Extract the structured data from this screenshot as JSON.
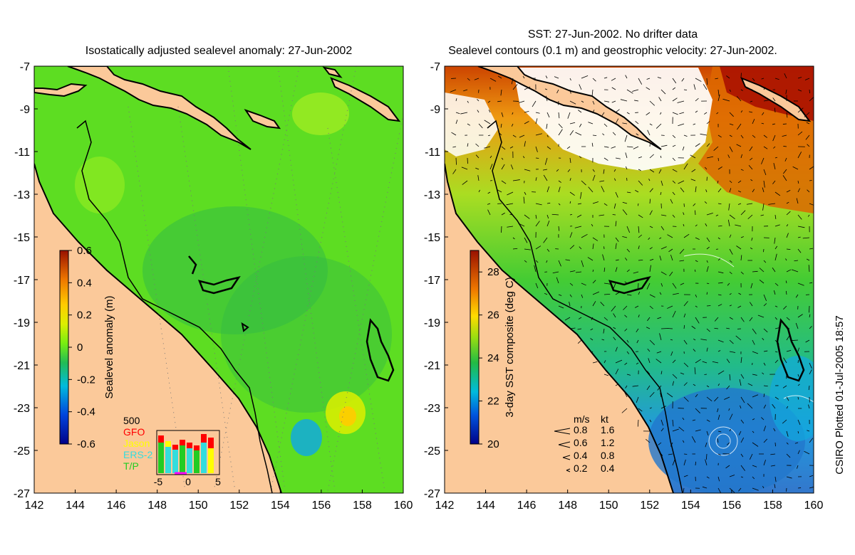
{
  "left_panel": {
    "title": "Isostatically adjusted sealevel anomaly: 27-Jun-2002",
    "colorbar": {
      "label": "Sealevel anomaly (m)",
      "ticks": [
        "0.6",
        "0.4",
        "0.2",
        "0",
        "-0.2",
        "-0.4",
        "-0.6"
      ],
      "range": [
        -0.6,
        0.6
      ]
    },
    "inset": {
      "count_label": "500",
      "missions": [
        {
          "name": "GFO",
          "color": "#ff0000"
        },
        {
          "name": "Jason",
          "color": "#ffff00"
        },
        {
          "name": "ERS-2",
          "color": "#33dddd"
        },
        {
          "name": "T/P",
          "color": "#22cc22"
        }
      ],
      "x_ticks": [
        "-5",
        "0",
        "5"
      ]
    }
  },
  "right_panel": {
    "title_line1": "SST: 27-Jun-2002. No drifter data",
    "title_line2": "Sealevel contours (0.1 m) and geostrophic velocity: 27-Jun-2002.",
    "colorbar": {
      "label": "3-day SST composite (deg C)",
      "ticks": [
        "28",
        "26",
        "24",
        "22",
        "20"
      ],
      "range": [
        20,
        29
      ]
    },
    "speed_legend": {
      "header_ms": "m/s",
      "header_kt": "kt",
      "rows": [
        {
          "ms": "0.8",
          "kt": "1.6"
        },
        {
          "ms": "0.6",
          "kt": "1.2"
        },
        {
          "ms": "0.4",
          "kt": "0.8"
        },
        {
          "ms": "0.2",
          "kt": "0.4"
        }
      ]
    }
  },
  "axes": {
    "lon_ticks": [
      "142",
      "144",
      "146",
      "148",
      "150",
      "152",
      "154",
      "156",
      "158",
      "160"
    ],
    "lat_ticks": [
      "-7",
      "-9",
      "-11",
      "-13",
      "-15",
      "-17",
      "-19",
      "-21",
      "-23",
      "-25",
      "-27"
    ],
    "lon_range": [
      142,
      160
    ],
    "lat_range": [
      -27,
      -7
    ]
  },
  "credit": "CSIRO Plotted 01-Jul-2005 18:57",
  "colors": {
    "land": "#fbc99a",
    "sla_ocean": "#55dd22",
    "sst_warm": "#dd6600",
    "sst_cool": "#2288dd"
  }
}
